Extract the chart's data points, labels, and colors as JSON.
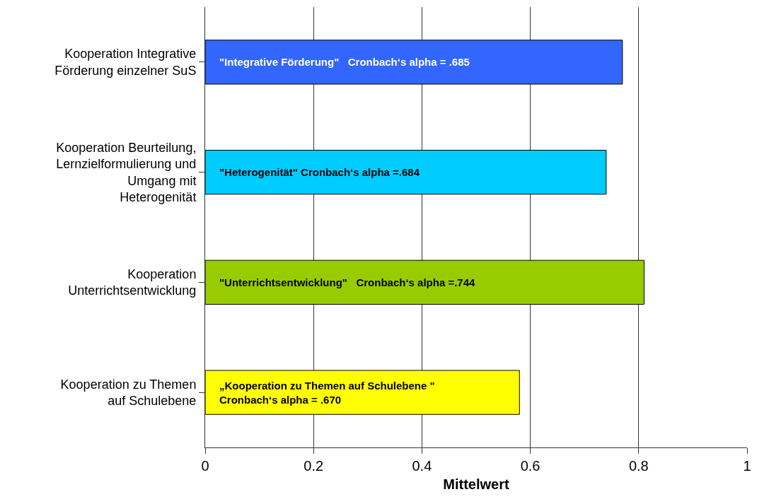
{
  "chart_data": {
    "type": "bar",
    "orientation": "horizontal",
    "xlabel": "Mittelwert",
    "categories": [
      "Kooperation Integrative\nFörderung einzelner SuS",
      "Kooperation Beurteilung,\nLernzielformulierung und\nUmgang mit\nHeterogenität",
      "Kooperation\nUnterrichtsentwicklung",
      "Kooperation zu Themen\nauf Schulebene"
    ],
    "values": [
      0.77,
      0.74,
      0.81,
      0.58
    ],
    "colors": [
      "#3366ff",
      "#00ccff",
      "#99cc00",
      "#ffff00"
    ],
    "xlim": [
      0,
      1
    ],
    "xticks": [
      0,
      0.2,
      0.4,
      0.6,
      0.8,
      1
    ],
    "grid": "x",
    "annotations": [
      "\"Integrative Förderung\"   Cronbach‘s alpha = .685",
      "\"Heterogenität\" Cronbach‘s alpha =.684",
      "\"Unterrichtsentwicklung\"   Cronbach‘s alpha =.744",
      "„Kooperation zu Themen auf Schulebene \"\nCronbach‘s alpha = .670"
    ]
  }
}
